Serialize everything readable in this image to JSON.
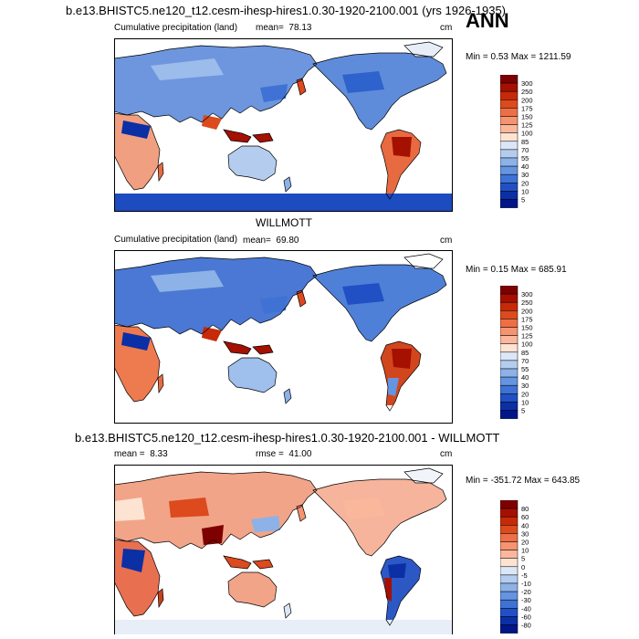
{
  "season": "ANN",
  "panel1": {
    "title": "b.e13.BHISTC5.ne120_t12.cesm-ihesp-hires1.0.30-1920-2100.001 (yrs 1926-1935)",
    "left_label": "Cumulative precipitation (land)",
    "mean_label": "mean=",
    "mean_value": "78.13",
    "units": "cm",
    "minmax": "Min =   0.53 Max = 1211.59",
    "scale": [
      "300",
      "250",
      "200",
      "175",
      "150",
      "125",
      "100",
      "85",
      "70",
      "55",
      "40",
      "30",
      "20",
      "10",
      "5"
    ],
    "colors": [
      "#7f0000",
      "#a51000",
      "#c62a08",
      "#dc4a1e",
      "#ee6f45",
      "#f69370",
      "#fab79c",
      "#fde3d2",
      "#dbe6f6",
      "#b4cdef",
      "#8cb2e8",
      "#6594e0",
      "#3f72d4",
      "#2050c4",
      "#0b2fa5",
      "#00168a"
    ]
  },
  "panel2": {
    "title": "WILLMOTT",
    "left_label": "Cumulative precipitation (land)",
    "mean_label": "mean=",
    "mean_value": "69.80",
    "units": "cm",
    "minmax": "Min =   0.15 Max = 685.91",
    "scale": [
      "300",
      "250",
      "200",
      "175",
      "150",
      "125",
      "100",
      "85",
      "70",
      "55",
      "40",
      "30",
      "20",
      "10",
      "5"
    ],
    "colors": [
      "#7f0000",
      "#a51000",
      "#c62a08",
      "#dc4a1e",
      "#ee6f45",
      "#f69370",
      "#fab79c",
      "#fde3d2",
      "#dbe6f6",
      "#b4cdef",
      "#8cb2e8",
      "#6594e0",
      "#3f72d4",
      "#2050c4",
      "#0b2fa5",
      "#00168a"
    ]
  },
  "panel3": {
    "title": "b.e13.BHISTC5.ne120_t12.cesm-ihesp-hires1.0.30-1920-2100.001 - WILLMOTT",
    "mean_label": "mean =",
    "mean_value": "8.33",
    "rmse_label": "rmse =",
    "rmse_value": "41.00",
    "units": "cm",
    "minmax": "Min = -351.72 Max = 643.85",
    "scale": [
      "80",
      "60",
      "40",
      "30",
      "20",
      "10",
      "5",
      "0",
      "-5",
      "-10",
      "-20",
      "-30",
      "-40",
      "-60",
      "-80"
    ],
    "colors": [
      "#7f0000",
      "#a51000",
      "#c62a08",
      "#dc4a1e",
      "#ee6f45",
      "#f69370",
      "#fab79c",
      "#fde3d2",
      "#dbe6f6",
      "#b4cdef",
      "#8cb2e8",
      "#6594e0",
      "#3f72d4",
      "#2050c4",
      "#0b2fa5",
      "#00168a"
    ]
  }
}
